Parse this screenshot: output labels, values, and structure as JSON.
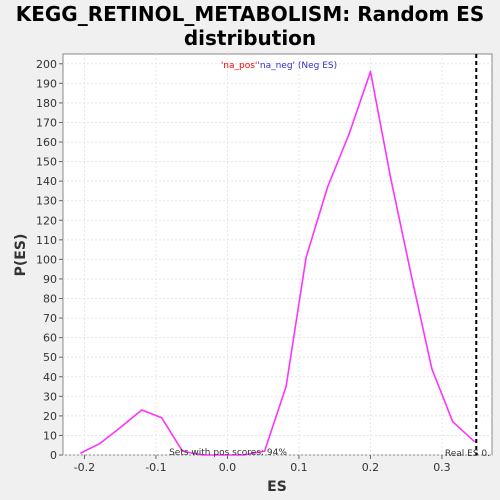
{
  "chart_data": {
    "type": "line",
    "title_line1": "KEGG_RETINOL_METABOLISM: Random ES",
    "title_line2": "distribution",
    "xlabel": "ES",
    "ylabel": "P(ES)",
    "xlim": [
      -0.23,
      0.37
    ],
    "ylim": [
      0,
      205
    ],
    "x_ticks": [
      -0.2,
      -0.1,
      0.0,
      0.1,
      0.2,
      0.3
    ],
    "x_tick_labels": [
      "-0.2",
      "-0.1",
      "0.0",
      "0.1",
      "0.2",
      "0.3"
    ],
    "y_ticks": [
      0,
      10,
      20,
      30,
      40,
      50,
      60,
      70,
      80,
      90,
      100,
      110,
      120,
      130,
      140,
      150,
      160,
      170,
      180,
      190,
      200
    ],
    "grid": true,
    "legend_pos_label": "'na_pos'",
    "legend_neg_label": "'na_neg' (Neg ES)",
    "series": [
      {
        "name": "'na_neg' (Neg ES)",
        "color": "#ff33ff",
        "x": [
          -0.205,
          -0.178,
          -0.15,
          -0.12,
          -0.092,
          -0.063,
          -0.035,
          -0.006,
          0.023,
          0.052,
          0.082,
          0.11,
          0.14,
          0.17,
          0.2,
          0.228,
          0.257,
          0.286,
          0.315,
          0.345
        ],
        "y": [
          1,
          6,
          14,
          23,
          19,
          2,
          0,
          0,
          0,
          2,
          35,
          101,
          137,
          164,
          196,
          142,
          92,
          44,
          17,
          7
        ]
      }
    ],
    "real_es_x": 0.348,
    "real_es_label": "Real ES 0.",
    "pos_scores_label": "Sets with pos scores: 94%",
    "colors": {
      "pos": "#ff0000",
      "neg": "#0000ff",
      "real_es_line": "#000000"
    }
  }
}
